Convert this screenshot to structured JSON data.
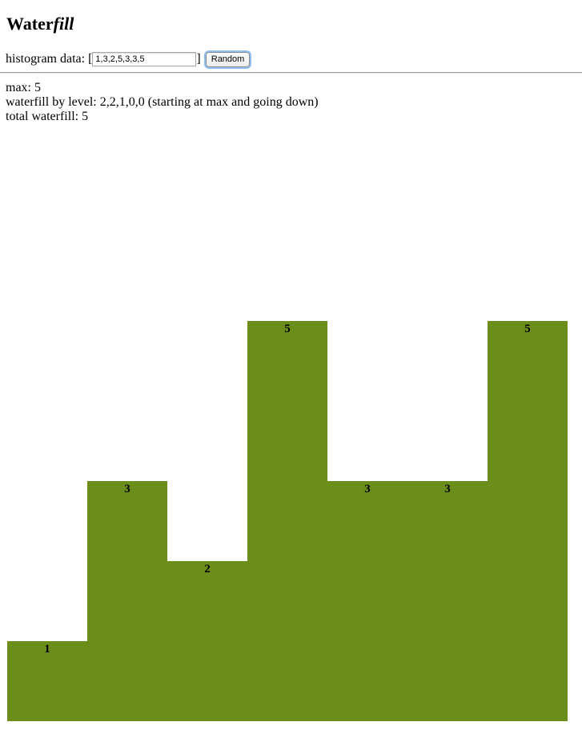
{
  "header": {
    "title_plain": "Water",
    "title_italic": "fill"
  },
  "controls": {
    "histogram_label": "histogram data:",
    "bracket_open": "[",
    "bracket_close": "]",
    "histogram_value": "1,3,2,5,3,3,5",
    "random_button": "Random"
  },
  "stats": {
    "max_line": "max: 5",
    "by_level_line": "waterfill by level: 2,2,1,0,0 (starting at max and going down)",
    "total_line": "total waterfill: 5"
  },
  "colors": {
    "bar_fill": "#6b8e1a"
  },
  "chart_data": {
    "type": "bar",
    "values": [
      1,
      3,
      2,
      5,
      3,
      3,
      5
    ],
    "max": 5,
    "waterfill_by_level": [
      2,
      2,
      1,
      0,
      0
    ],
    "total_waterfill": 5
  }
}
